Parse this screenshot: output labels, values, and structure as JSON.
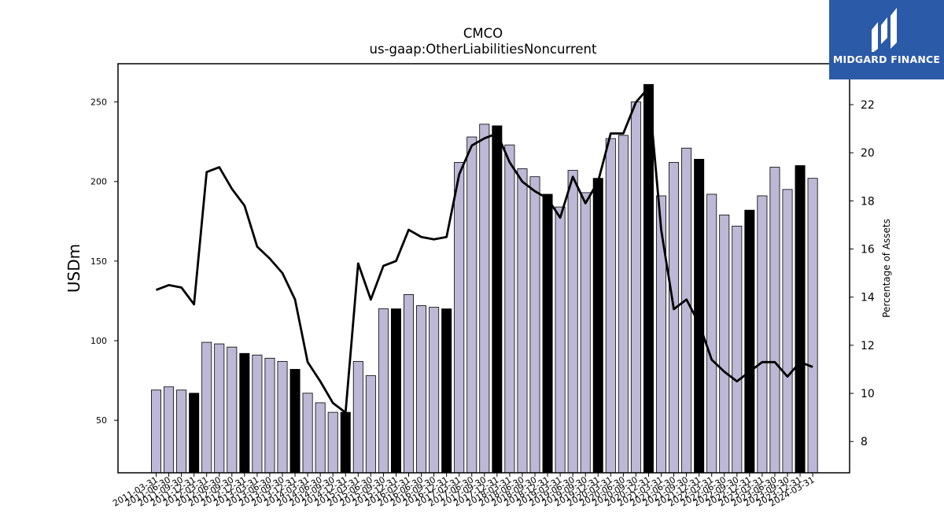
{
  "logo": {
    "text": "MIDGARD FINANCE"
  },
  "chart_data": {
    "type": "bar",
    "title": "CMCO",
    "subtitle": "us-gaap:OtherLiabilitiesNoncurrent",
    "ylabel": "USDm",
    "y2label": "Percentage of Assets",
    "ylim": [
      17,
      274
    ],
    "y2lim": [
      6.7,
      23.7
    ],
    "yticks": [
      50,
      100,
      150,
      200,
      250
    ],
    "y2ticks": [
      8,
      10,
      12,
      14,
      16,
      18,
      20,
      22
    ],
    "categories": [
      "2011-03-31",
      "2011-06-30",
      "2011-09-30",
      "2011-12-31",
      "2012-03-31",
      "2012-06-30",
      "2012-09-30",
      "2012-12-31",
      "2013-03-31",
      "2013-06-30",
      "2013-09-30",
      "2013-12-31",
      "2014-03-31",
      "2014-06-30",
      "2014-09-30",
      "2014-12-31",
      "2015-03-31",
      "2015-06-30",
      "2015-09-30",
      "2015-12-31",
      "2016-03-31",
      "2016-06-30",
      "2016-09-30",
      "2016-12-31",
      "2017-03-31",
      "2017-06-30",
      "2017-09-30",
      "2017-12-31",
      "2018-03-31",
      "2018-06-30",
      "2018-09-30",
      "2018-12-31",
      "2019-03-31",
      "2019-06-30",
      "2019-09-30",
      "2019-12-31",
      "2020-03-31",
      "2020-06-30",
      "2020-09-30",
      "2020-12-31",
      "2021-03-31",
      "2021-06-30",
      "2021-09-30",
      "2021-12-31",
      "2022-03-31",
      "2022-06-30",
      "2022-09-30",
      "2022-12-31",
      "2023-03-31",
      "2023-06-30",
      "2023-09-30",
      "2023-12-31",
      "2024-03-31"
    ],
    "series": [
      {
        "kind": "bar",
        "values": [
          69,
          71,
          69,
          67,
          99,
          98,
          96,
          92,
          91,
          89,
          87,
          82,
          67,
          61,
          55,
          55,
          87,
          78,
          120,
          120,
          129,
          122,
          121,
          120,
          212,
          228,
          236,
          235,
          223,
          208,
          203,
          192,
          184,
          207,
          193,
          202,
          227,
          229,
          250,
          261,
          191,
          212,
          221,
          214,
          192,
          179,
          172,
          182,
          191,
          209,
          195,
          210,
          202
        ],
        "annual_color": "#000000",
        "quarter_color": "#bcb8d6"
      },
      {
        "kind": "line",
        "axis": "right",
        "values": [
          14.3,
          14.5,
          14.4,
          13.7,
          19.2,
          19.4,
          18.5,
          17.8,
          16.1,
          15.6,
          15.0,
          13.9,
          11.3,
          10.5,
          9.6,
          9.2,
          15.4,
          13.9,
          15.3,
          15.5,
          16.8,
          16.5,
          16.4,
          16.5,
          19.1,
          20.3,
          20.6,
          20.8,
          19.6,
          18.8,
          18.4,
          18.1,
          17.3,
          19.0,
          17.9,
          18.8,
          20.8,
          20.8,
          22.1,
          22.7,
          16.8,
          13.5,
          13.9,
          12.9,
          11.4,
          10.9,
          10.5,
          10.9,
          11.3,
          11.3,
          10.7,
          11.3,
          11.1
        ],
        "color": "#000000"
      }
    ],
    "annual_indices": [
      3,
      7,
      11,
      15,
      19,
      23,
      27,
      31,
      35,
      39,
      43,
      47,
      51
    ]
  }
}
